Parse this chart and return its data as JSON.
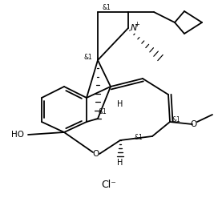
{
  "background_color": "#ffffff",
  "line_color": "#000000",
  "text_color": "#000000",
  "figsize": [
    2.72,
    2.47
  ],
  "dpi": 100,
  "cl_label": "Cl⁻",
  "ho_label": "HO",
  "o_label": "O",
  "n_plus": "N",
  "meo_label": "O",
  "stereo1": "&1",
  "h_label": "H"
}
